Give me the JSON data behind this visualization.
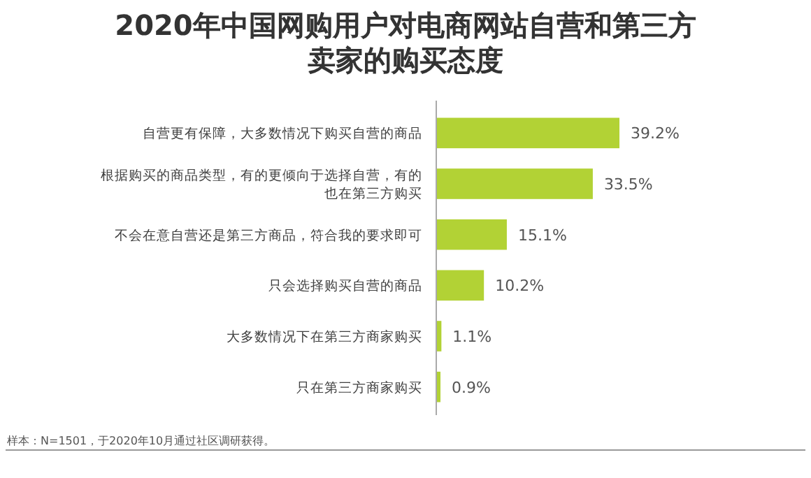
{
  "chart_data": {
    "type": "bar",
    "orientation": "horizontal",
    "title": "2020年中国网购用户对电商网站自营和第三方卖家的购买态度",
    "categories": [
      "自营更有保障，大多数情况下购买自营的商品",
      "根据购买的商品类型，有的更倾向于选择自营，有的也在第三方购买",
      "不会在意自营还是第三方商品，符合我的要求即可",
      "只会选择购买自营的商品",
      "大多数情况下在第三方商家购买",
      "只在第三方商家购买"
    ],
    "values": [
      39.2,
      33.5,
      15.1,
      10.2,
      1.1,
      0.9
    ],
    "value_labels": [
      "39.2%",
      "33.5%",
      "15.1%",
      "10.2%",
      "1.1%",
      "0.9%"
    ],
    "color": "#b2d235",
    "tick_labels": "y",
    "annotations": [
      "样本：N=1501，于2020年10月通过社区调研获得。"
    ]
  }
}
